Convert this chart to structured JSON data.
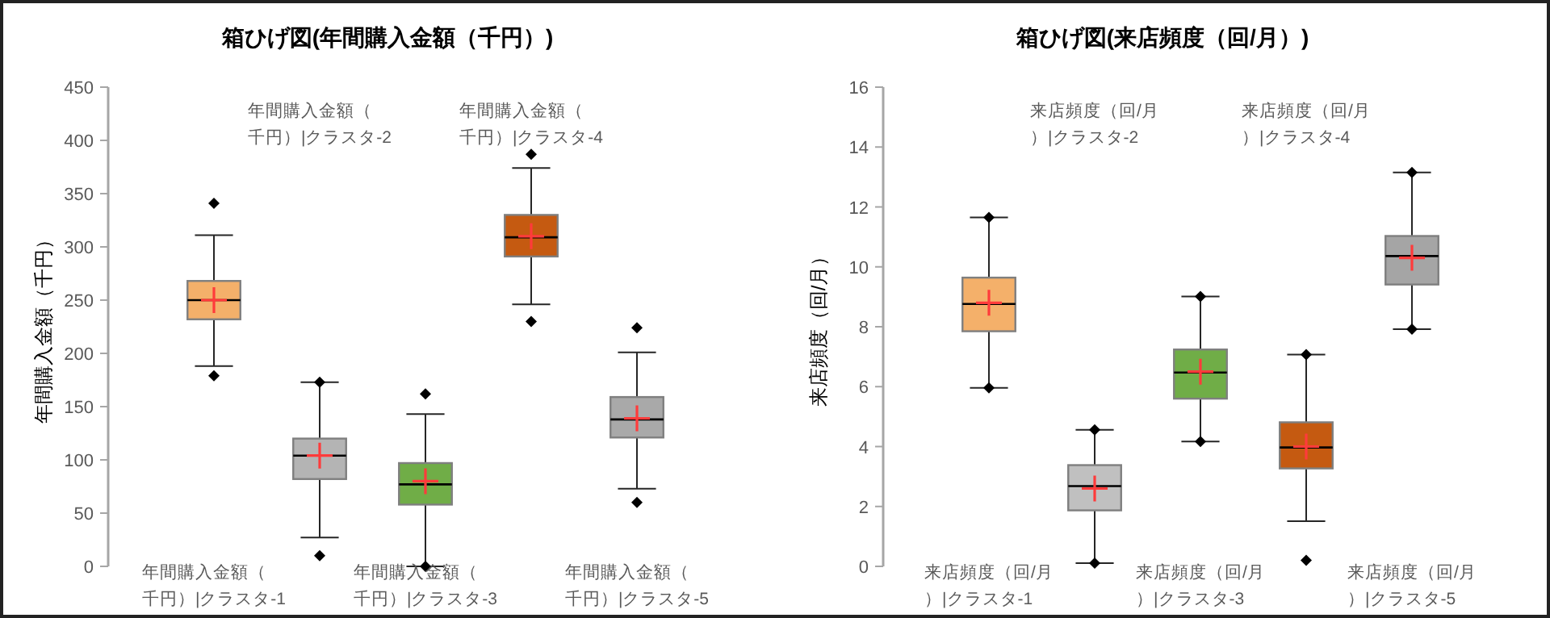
{
  "chart_data": [
    {
      "type": "box",
      "title": "箱ひげ図(年間購入金額（千円）)",
      "ylabel": "年間購入金額（千円）",
      "categories": [
        "年間購入金額（千円）|クラスタ-1",
        "年間購入金額（千円）|クラスタ-2",
        "年間購入金額（千円）|クラスタ-3",
        "年間購入金額（千円）|クラスタ-4",
        "年間購入金額（千円）|クラスタ-5"
      ],
      "colors": [
        "#f4b06a",
        "#b4b4b4",
        "#70ad47",
        "#c55a11",
        "#a9a9a9"
      ],
      "boxes": [
        {
          "low": 188,
          "q1": 232,
          "median": 250,
          "q3": 268,
          "high": 311,
          "mean": 250,
          "outliers": [
            341,
            179
          ]
        },
        {
          "low": 27,
          "q1": 82,
          "median": 104,
          "q3": 120,
          "high": 173,
          "mean": 104,
          "outliers": [
            173,
            10
          ]
        },
        {
          "low": 0,
          "q1": 58,
          "median": 77,
          "q3": 97,
          "high": 143,
          "mean": 80,
          "outliers": [
            162,
            0
          ]
        },
        {
          "low": 246,
          "q1": 291,
          "median": 309,
          "q3": 330,
          "high": 374,
          "mean": 310,
          "outliers": [
            387,
            230
          ]
        },
        {
          "low": 73,
          "q1": 121,
          "median": 138,
          "q3": 159,
          "high": 201,
          "mean": 139,
          "outliers": [
            224,
            60
          ]
        }
      ],
      "ylim": [
        0,
        450
      ],
      "yticks": [
        0,
        50,
        100,
        150,
        200,
        250,
        300,
        350,
        400,
        450
      ],
      "grid": false,
      "marker": "diamond"
    },
    {
      "type": "box",
      "title": "箱ひげ図(来店頻度（回/月）)",
      "ylabel": "来店頻度（回/月）",
      "categories": [
        "来店頻度（回/月）|クラスタ-1",
        "来店頻度（回/月）|クラスタ-2",
        "来店頻度（回/月）|クラスタ-3",
        "来店頻度（回/月）|クラスタ-4",
        "来店頻度（回/月）|クラスタ-5"
      ],
      "colors": [
        "#f4b06a",
        "#c0c0c0",
        "#70ad47",
        "#c55a11",
        "#a5a5a5"
      ],
      "boxes": [
        {
          "low": 5.96,
          "q1": 7.85,
          "median": 8.76,
          "q3": 9.64,
          "high": 11.65,
          "mean": 8.8,
          "outliers": [
            11.65,
            5.96
          ]
        },
        {
          "low": 0.11,
          "q1": 1.87,
          "median": 2.68,
          "q3": 3.38,
          "high": 4.56,
          "mean": 2.6,
          "outliers": [
            4.56,
            0.11
          ]
        },
        {
          "low": 4.17,
          "q1": 5.6,
          "median": 6.47,
          "q3": 7.24,
          "high": 9.01,
          "mean": 6.5,
          "outliers": [
            9.01,
            4.17
          ]
        },
        {
          "low": 1.51,
          "q1": 3.27,
          "median": 3.97,
          "q3": 4.81,
          "high": 7.07,
          "mean": 4.0,
          "outliers": [
            7.07,
            0.2
          ]
        },
        {
          "low": 7.92,
          "q1": 9.41,
          "median": 10.36,
          "q3": 11.03,
          "high": 13.15,
          "mean": 10.3,
          "outliers": [
            13.15,
            7.92
          ]
        }
      ],
      "ylim": [
        0,
        16
      ],
      "yticks": [
        0,
        2,
        4,
        6,
        8,
        10,
        12,
        14,
        16
      ],
      "grid": false,
      "marker": "diamond"
    }
  ]
}
